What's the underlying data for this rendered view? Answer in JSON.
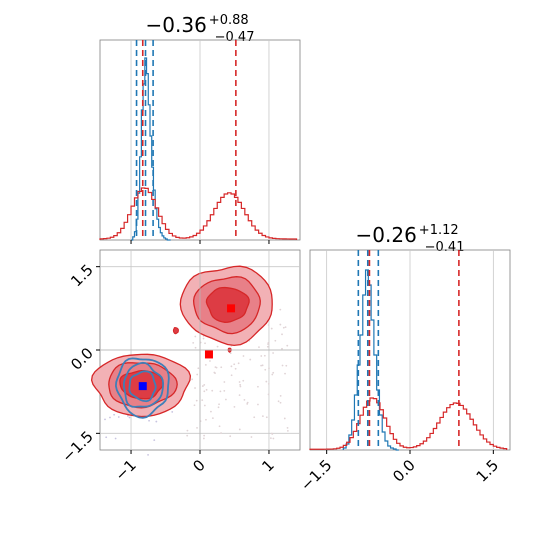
{
  "chart_data": [
    {
      "type": "histogram",
      "panel": "marginal-1",
      "title": {
        "main": "−0.36",
        "sup": "+0.88",
        "sub": "−0.47"
      },
      "xlim": [
        -1.45,
        1.45
      ],
      "xticks": [
        -1,
        0,
        1
      ],
      "series": [
        {
          "color": "#1f77b4",
          "bins": [
            -1.0,
            -0.975,
            -0.95,
            -0.925,
            -0.9,
            -0.875,
            -0.85,
            -0.825,
            -0.8,
            -0.775,
            -0.75,
            -0.725,
            -0.7,
            -0.675,
            -0.65,
            -0.625,
            -0.6,
            -0.575,
            -0.55,
            -0.525,
            -0.5,
            -0.475,
            -0.45,
            -0.425
          ],
          "counts": [
            0,
            3,
            8,
            20,
            45,
            80,
            125,
            150,
            175,
            160,
            130,
            100,
            70,
            48,
            30,
            20,
            12,
            7,
            4,
            2,
            1,
            0,
            0
          ],
          "quantiles": [
            -0.92,
            -0.79,
            -0.68
          ]
        },
        {
          "color": "#d62728",
          "quantiles": [
            -0.83,
            0.52
          ]
        }
      ]
    },
    {
      "type": "contour",
      "panel": "joint",
      "xlim": [
        -1.45,
        1.45
      ],
      "ylim": [
        -1.8,
        1.8
      ],
      "xticks": [
        -1,
        0,
        1
      ],
      "yticks": [
        -1.5,
        0.0,
        1.5
      ],
      "xtick_labels": [
        "−1",
        "0",
        "1"
      ],
      "ytick_labels": [
        "−1.5",
        "0.0",
        "1.5"
      ],
      "blue_marker": [
        -0.83,
        -0.65
      ],
      "red_markers": [
        [
          0.13,
          -0.08
        ],
        [
          0.45,
          0.75
        ]
      ],
      "crosshair": {
        "x": 0.0,
        "y": 0.0
      },
      "series": [
        {
          "color": "#1f77b4",
          "modes": [
            {
              "center": [
                -0.83,
                -0.65
              ],
              "sx": 0.18,
              "sy": 0.25
            }
          ]
        },
        {
          "color": "#d62728",
          "modes": [
            {
              "center": [
                -0.85,
                -0.62
              ],
              "sx": 0.32,
              "sy": 0.26
            },
            {
              "center": [
                0.4,
                0.82
              ],
              "sx": 0.31,
              "sy": 0.32
            }
          ]
        }
      ]
    },
    {
      "type": "histogram",
      "panel": "marginal-2",
      "title": {
        "main": "−0.26",
        "sup": "+1.12",
        "sub": "−0.41"
      },
      "xlim": [
        -1.8,
        1.8
      ],
      "xticks": [
        -1.5,
        0.0,
        1.5
      ],
      "xtick_labels": [
        "−1.5",
        "0.0",
        "1.5"
      ],
      "series": [
        {
          "color": "#1f77b4",
          "bins": [
            -1.2,
            -1.15,
            -1.1,
            -1.05,
            -1.0,
            -0.95,
            -0.9,
            -0.85,
            -0.8,
            -0.75,
            -0.7,
            -0.65,
            -0.6,
            -0.55,
            -0.5,
            -0.45,
            -0.4,
            -0.35,
            -0.3,
            -0.25,
            -0.2
          ],
          "counts": [
            2,
            6,
            15,
            30,
            55,
            85,
            115,
            155,
            180,
            165,
            130,
            95,
            60,
            35,
            18,
            9,
            4,
            2,
            1,
            0
          ],
          "quantiles": [
            -0.93,
            -0.76,
            -0.57
          ]
        },
        {
          "color": "#d62728",
          "quantiles": [
            -0.73,
            0.88
          ]
        }
      ]
    }
  ]
}
